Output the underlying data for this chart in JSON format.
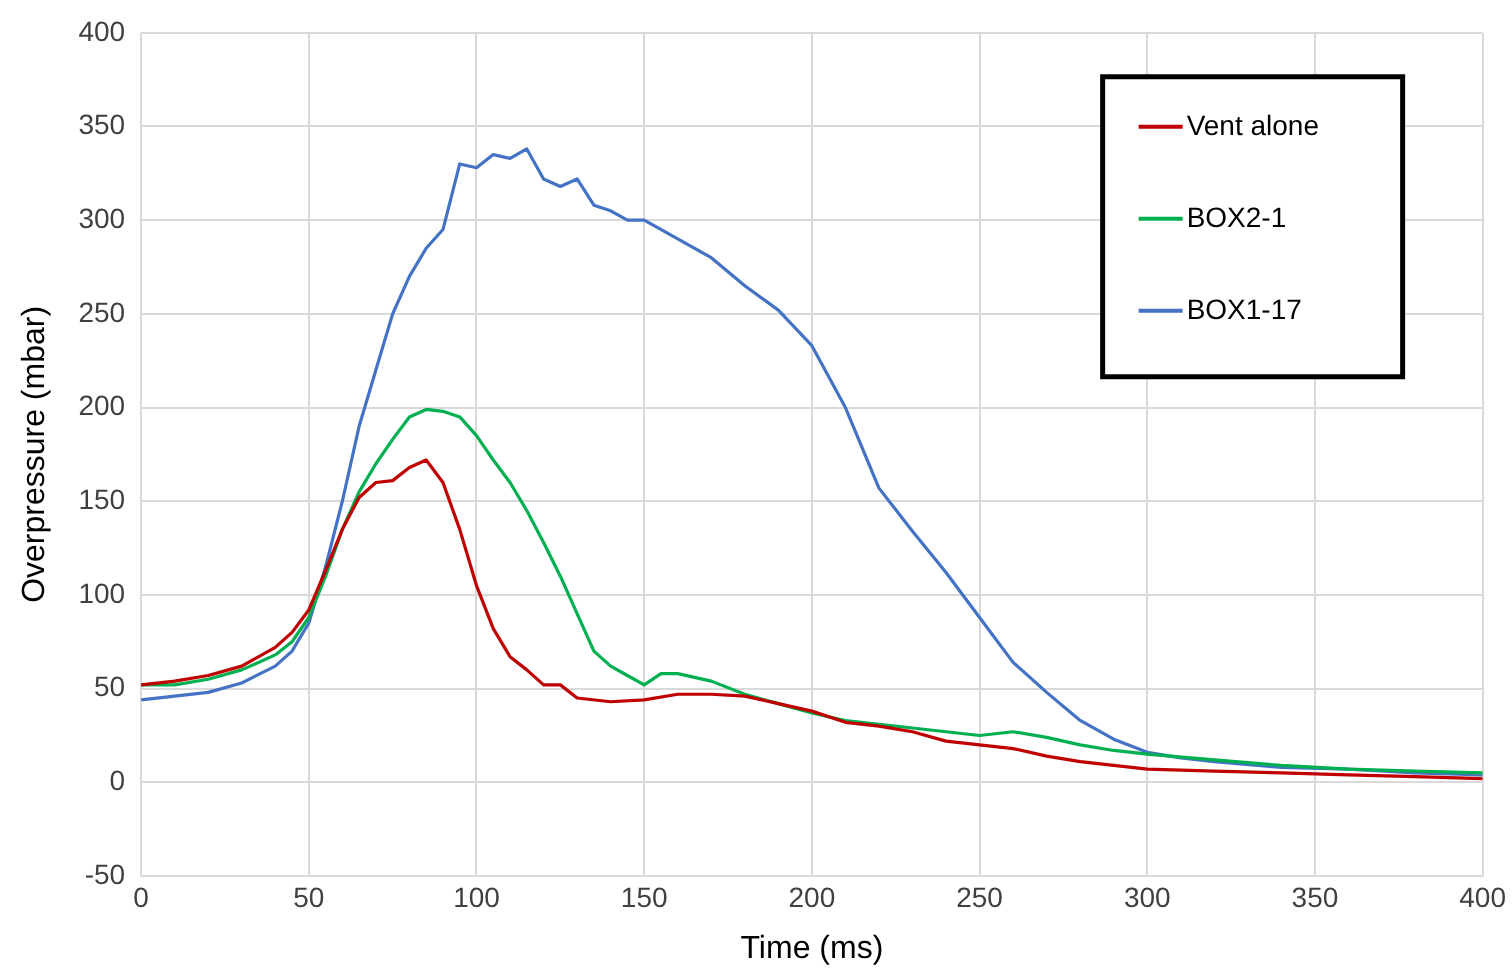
{
  "chart_data": {
    "type": "line",
    "xlabel": "Time (ms)",
    "ylabel": "Overpressure (mbar)",
    "xlim": [
      0,
      400
    ],
    "xticks": [
      0,
      50,
      100,
      150,
      200,
      250,
      300,
      350,
      400
    ],
    "ylim": [
      -50,
      400
    ],
    "yticks": [
      -50,
      0,
      50,
      100,
      150,
      200,
      250,
      300,
      350,
      400
    ],
    "grid": true,
    "legend": "top right",
    "marker": "none",
    "line_style": "solid",
    "series": [
      {
        "name": "Vent alone",
        "color": "#c00000",
        "x": [
          0,
          10,
          20,
          30,
          40,
          45,
          50,
          55,
          60,
          65,
          70,
          75,
          80,
          85,
          90,
          95,
          100,
          105,
          110,
          115,
          120,
          125,
          130,
          140,
          150,
          160,
          170,
          180,
          190,
          200,
          210,
          220,
          230,
          240,
          250,
          260,
          270,
          280,
          290,
          300,
          320,
          340,
          360,
          380,
          400
        ],
        "values": [
          52,
          54,
          57,
          62,
          72,
          80,
          92,
          113,
          135,
          152,
          160,
          161,
          168,
          172,
          160,
          135,
          105,
          82,
          67,
          60,
          52,
          52,
          45,
          43,
          44,
          47,
          47,
          46,
          42,
          38,
          32,
          30,
          27,
          22,
          20,
          18,
          14,
          11,
          9,
          7,
          6,
          5,
          4,
          3,
          2
        ]
      },
      {
        "name": "BOX2-1",
        "color": "#00b050",
        "x": [
          0,
          10,
          20,
          30,
          40,
          45,
          50,
          55,
          60,
          65,
          70,
          75,
          80,
          85,
          90,
          95,
          100,
          105,
          110,
          115,
          120,
          125,
          130,
          135,
          140,
          145,
          150,
          155,
          160,
          170,
          180,
          190,
          200,
          210,
          220,
          230,
          240,
          250,
          260,
          270,
          280,
          290,
          300,
          320,
          340,
          360,
          380,
          400
        ],
        "values": [
          52,
          52,
          55,
          60,
          68,
          75,
          88,
          110,
          135,
          155,
          170,
          183,
          195,
          199,
          198,
          195,
          185,
          172,
          160,
          145,
          128,
          110,
          90,
          70,
          62,
          57,
          52,
          58,
          58,
          54,
          47,
          42,
          37,
          33,
          31,
          29,
          27,
          25,
          27,
          24,
          20,
          17,
          15,
          12,
          9,
          7,
          6,
          5
        ]
      },
      {
        "name": "BOX1-17",
        "color": "#4472c4",
        "x": [
          0,
          10,
          20,
          30,
          40,
          45,
          50,
          55,
          60,
          65,
          70,
          75,
          80,
          85,
          90,
          95,
          100,
          105,
          110,
          115,
          120,
          125,
          130,
          135,
          140,
          145,
          150,
          160,
          170,
          180,
          190,
          200,
          210,
          220,
          230,
          240,
          250,
          260,
          270,
          280,
          290,
          300,
          310,
          320,
          340,
          360,
          380,
          400
        ],
        "values": [
          44,
          46,
          48,
          53,
          62,
          70,
          85,
          115,
          150,
          190,
          220,
          250,
          270,
          285,
          295,
          330,
          328,
          335,
          333,
          338,
          322,
          318,
          322,
          308,
          305,
          300,
          300,
          290,
          280,
          265,
          252,
          233,
          200,
          157,
          134,
          112,
          88,
          64,
          48,
          33,
          23,
          16,
          13,
          11,
          8,
          7,
          5,
          4
        ]
      }
    ]
  }
}
